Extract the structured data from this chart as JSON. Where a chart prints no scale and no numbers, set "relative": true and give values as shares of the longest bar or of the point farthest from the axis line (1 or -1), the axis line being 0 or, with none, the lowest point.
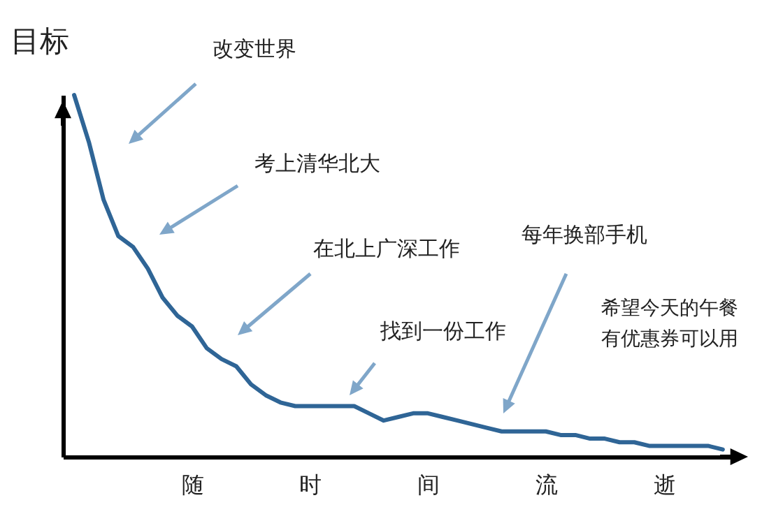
{
  "chart_data": {
    "type": "line",
    "relative": true,
    "ylabel": "目标",
    "color": "#2f6596",
    "categories": [
      null,
      null,
      null,
      null,
      null,
      null,
      null,
      null,
      "随",
      null,
      null,
      null,
      null,
      null,
      null,
      null,
      "时",
      null,
      null,
      null,
      null,
      null,
      null,
      null,
      "间",
      null,
      null,
      null,
      null,
      null,
      null,
      null,
      "流",
      null,
      null,
      null,
      null,
      null,
      null,
      null,
      "逝",
      null,
      null,
      null,
      null
    ],
    "values": [
      1.0,
      0.87,
      0.71,
      0.61,
      0.58,
      0.52,
      0.44,
      0.39,
      0.36,
      0.3,
      0.27,
      0.25,
      0.2,
      0.17,
      0.15,
      0.14,
      0.14,
      0.14,
      0.14,
      0.14,
      0.12,
      0.1,
      0.11,
      0.12,
      0.12,
      0.11,
      0.1,
      0.09,
      0.08,
      0.07,
      0.07,
      0.07,
      0.07,
      0.06,
      0.06,
      0.05,
      0.05,
      0.04,
      0.04,
      0.03,
      0.03,
      0.03,
      0.03,
      0.03,
      0.02
    ],
    "annotations": [
      "改变世界",
      "考上清华北大",
      "在北上广深工作",
      "找到一份工作",
      "每年换部手机",
      "希望今天的午餐有优惠券可以用"
    ]
  }
}
